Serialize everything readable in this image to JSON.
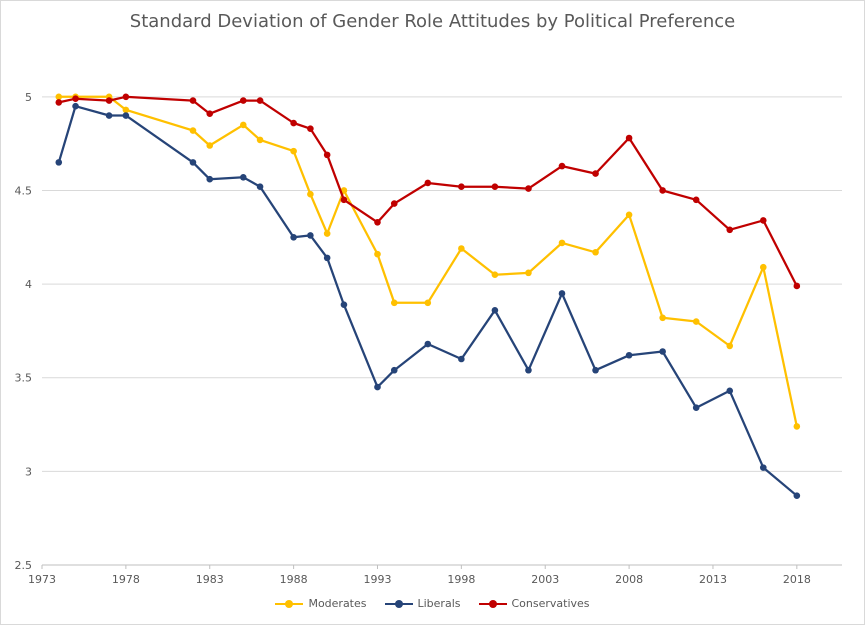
{
  "chart_data": {
    "type": "line",
    "title": "Standard Deviation of Gender Role Attitudes by Political Preference",
    "xlabel": "",
    "ylabel": "",
    "xlim": [
      1973,
      2019.5
    ],
    "ylim": [
      2.5,
      5.25
    ],
    "x_ticks": [
      "1973",
      "1978",
      "1983",
      "1988",
      "1993",
      "1998",
      "2003",
      "2008",
      "2013",
      "2018"
    ],
    "y_ticks": [
      "2.5",
      "3",
      "3.5",
      "4",
      "4.5",
      "5"
    ],
    "grid": "horizontal",
    "legend_position": "bottom",
    "series": [
      {
        "name": "Moderates",
        "color": "#FFC000",
        "x": [
          1974,
          1975,
          1977,
          1978,
          1982,
          1983,
          1985,
          1986,
          1988,
          1989,
          1990,
          1991,
          1993,
          1994,
          1996,
          1998,
          2000,
          2002,
          2004,
          2006,
          2008,
          2010,
          2012,
          2014,
          2016,
          2018
        ],
        "y": [
          5.0,
          5.0,
          5.0,
          4.93,
          4.82,
          4.74,
          4.85,
          4.77,
          4.71,
          4.48,
          4.27,
          4.5,
          4.16,
          3.9,
          3.9,
          4.19,
          4.05,
          4.06,
          4.22,
          4.17,
          4.37,
          3.82,
          3.8,
          3.67,
          4.09,
          3.24
        ]
      },
      {
        "name": "Liberals",
        "color": "#264478",
        "x": [
          1974,
          1975,
          1977,
          1978,
          1982,
          1983,
          1985,
          1986,
          1988,
          1989,
          1990,
          1991,
          1993,
          1994,
          1996,
          1998,
          2000,
          2002,
          2004,
          2006,
          2008,
          2010,
          2012,
          2014,
          2016,
          2018
        ],
        "y": [
          4.65,
          4.95,
          4.9,
          4.9,
          4.65,
          4.56,
          4.57,
          4.52,
          4.25,
          4.26,
          4.14,
          3.89,
          3.45,
          3.54,
          3.68,
          3.6,
          3.86,
          3.54,
          3.95,
          3.54,
          3.62,
          3.64,
          3.34,
          3.43,
          3.02,
          2.87
        ]
      },
      {
        "name": "Conservatives",
        "color": "#C00000",
        "x": [
          1974,
          1975,
          1977,
          1978,
          1982,
          1983,
          1985,
          1986,
          1988,
          1989,
          1990,
          1991,
          1993,
          1994,
          1996,
          1998,
          2000,
          2002,
          2004,
          2006,
          2008,
          2010,
          2012,
          2014,
          2016,
          2018
        ],
        "y": [
          4.97,
          4.99,
          4.98,
          5.0,
          4.98,
          4.91,
          4.98,
          4.98,
          4.86,
          4.83,
          4.69,
          4.45,
          4.33,
          4.43,
          4.54,
          4.52,
          4.52,
          4.51,
          4.63,
          4.59,
          4.78,
          4.5,
          4.45,
          4.29,
          4.34,
          3.99
        ]
      }
    ]
  }
}
